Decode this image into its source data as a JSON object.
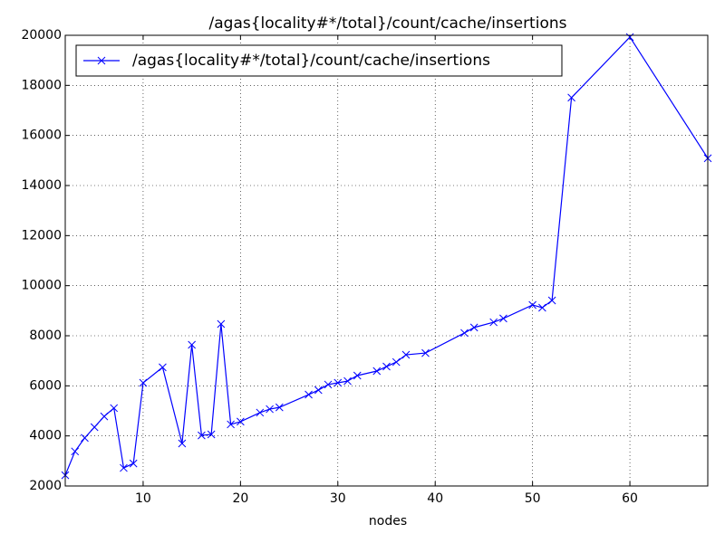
{
  "chart_data": {
    "type": "line",
    "title": "/agas{locality#*/total}/count/cache/insertions",
    "x_label": "nodes",
    "x": [
      2,
      3,
      4,
      5,
      6,
      7,
      8,
      9,
      10,
      12,
      14,
      15,
      16,
      17,
      18,
      19,
      20,
      22,
      23,
      24,
      27,
      28,
      29,
      30,
      31,
      32,
      34,
      35,
      36,
      37,
      39,
      43,
      44,
      46,
      47,
      50,
      51,
      52,
      54,
      60,
      68
    ],
    "series": [
      {
        "name": "/agas{locality#*/total}/count/cache/insertions",
        "color": "#0000ff",
        "values": [
          2430,
          3380,
          3920,
          4350,
          4780,
          5110,
          2720,
          2900,
          6120,
          6740,
          3700,
          7640,
          4020,
          4060,
          8470,
          4460,
          4570,
          4930,
          5070,
          5140,
          5650,
          5830,
          6050,
          6120,
          6190,
          6410,
          6590,
          6770,
          6950,
          7240,
          7310,
          8110,
          8330,
          8540,
          8690,
          9230,
          9120,
          9410,
          17510,
          19930,
          15090
        ]
      }
    ],
    "xlim": [
      2,
      68
    ],
    "xticks": [
      10,
      20,
      30,
      40,
      50,
      60
    ],
    "ylim": [
      2000,
      20000
    ],
    "yticks": [
      2000,
      4000,
      6000,
      8000,
      10000,
      12000,
      14000,
      16000,
      18000,
      20000
    ],
    "grid": true,
    "legend": "upper left"
  }
}
